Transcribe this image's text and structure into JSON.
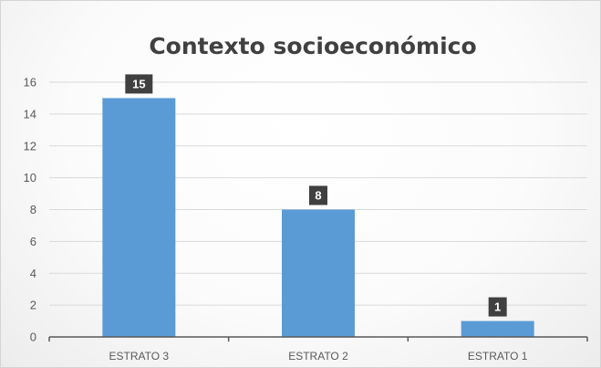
{
  "chart_data": {
    "type": "bar",
    "title": "Contexto socioeconómico",
    "xlabel": "",
    "ylabel": "",
    "categories": [
      "ESTRATO 3",
      "ESTRATO 2",
      "ESTRATO 1"
    ],
    "values": [
      15,
      8,
      1
    ],
    "data_labels": [
      "15",
      "8",
      "1"
    ],
    "ylim": [
      0,
      16
    ],
    "yticks": [
      0,
      2,
      4,
      6,
      8,
      10,
      12,
      14,
      16
    ],
    "ytick_labels": [
      "0",
      "2",
      "4",
      "6",
      "8",
      "10",
      "12",
      "14",
      "16"
    ],
    "grid": true,
    "legend": "none",
    "colors": {
      "bar": "#5b9bd5",
      "data_label_bg": "#404040",
      "gridline": "#d9d9d9",
      "axis": "#595959",
      "title": "#404040"
    }
  }
}
